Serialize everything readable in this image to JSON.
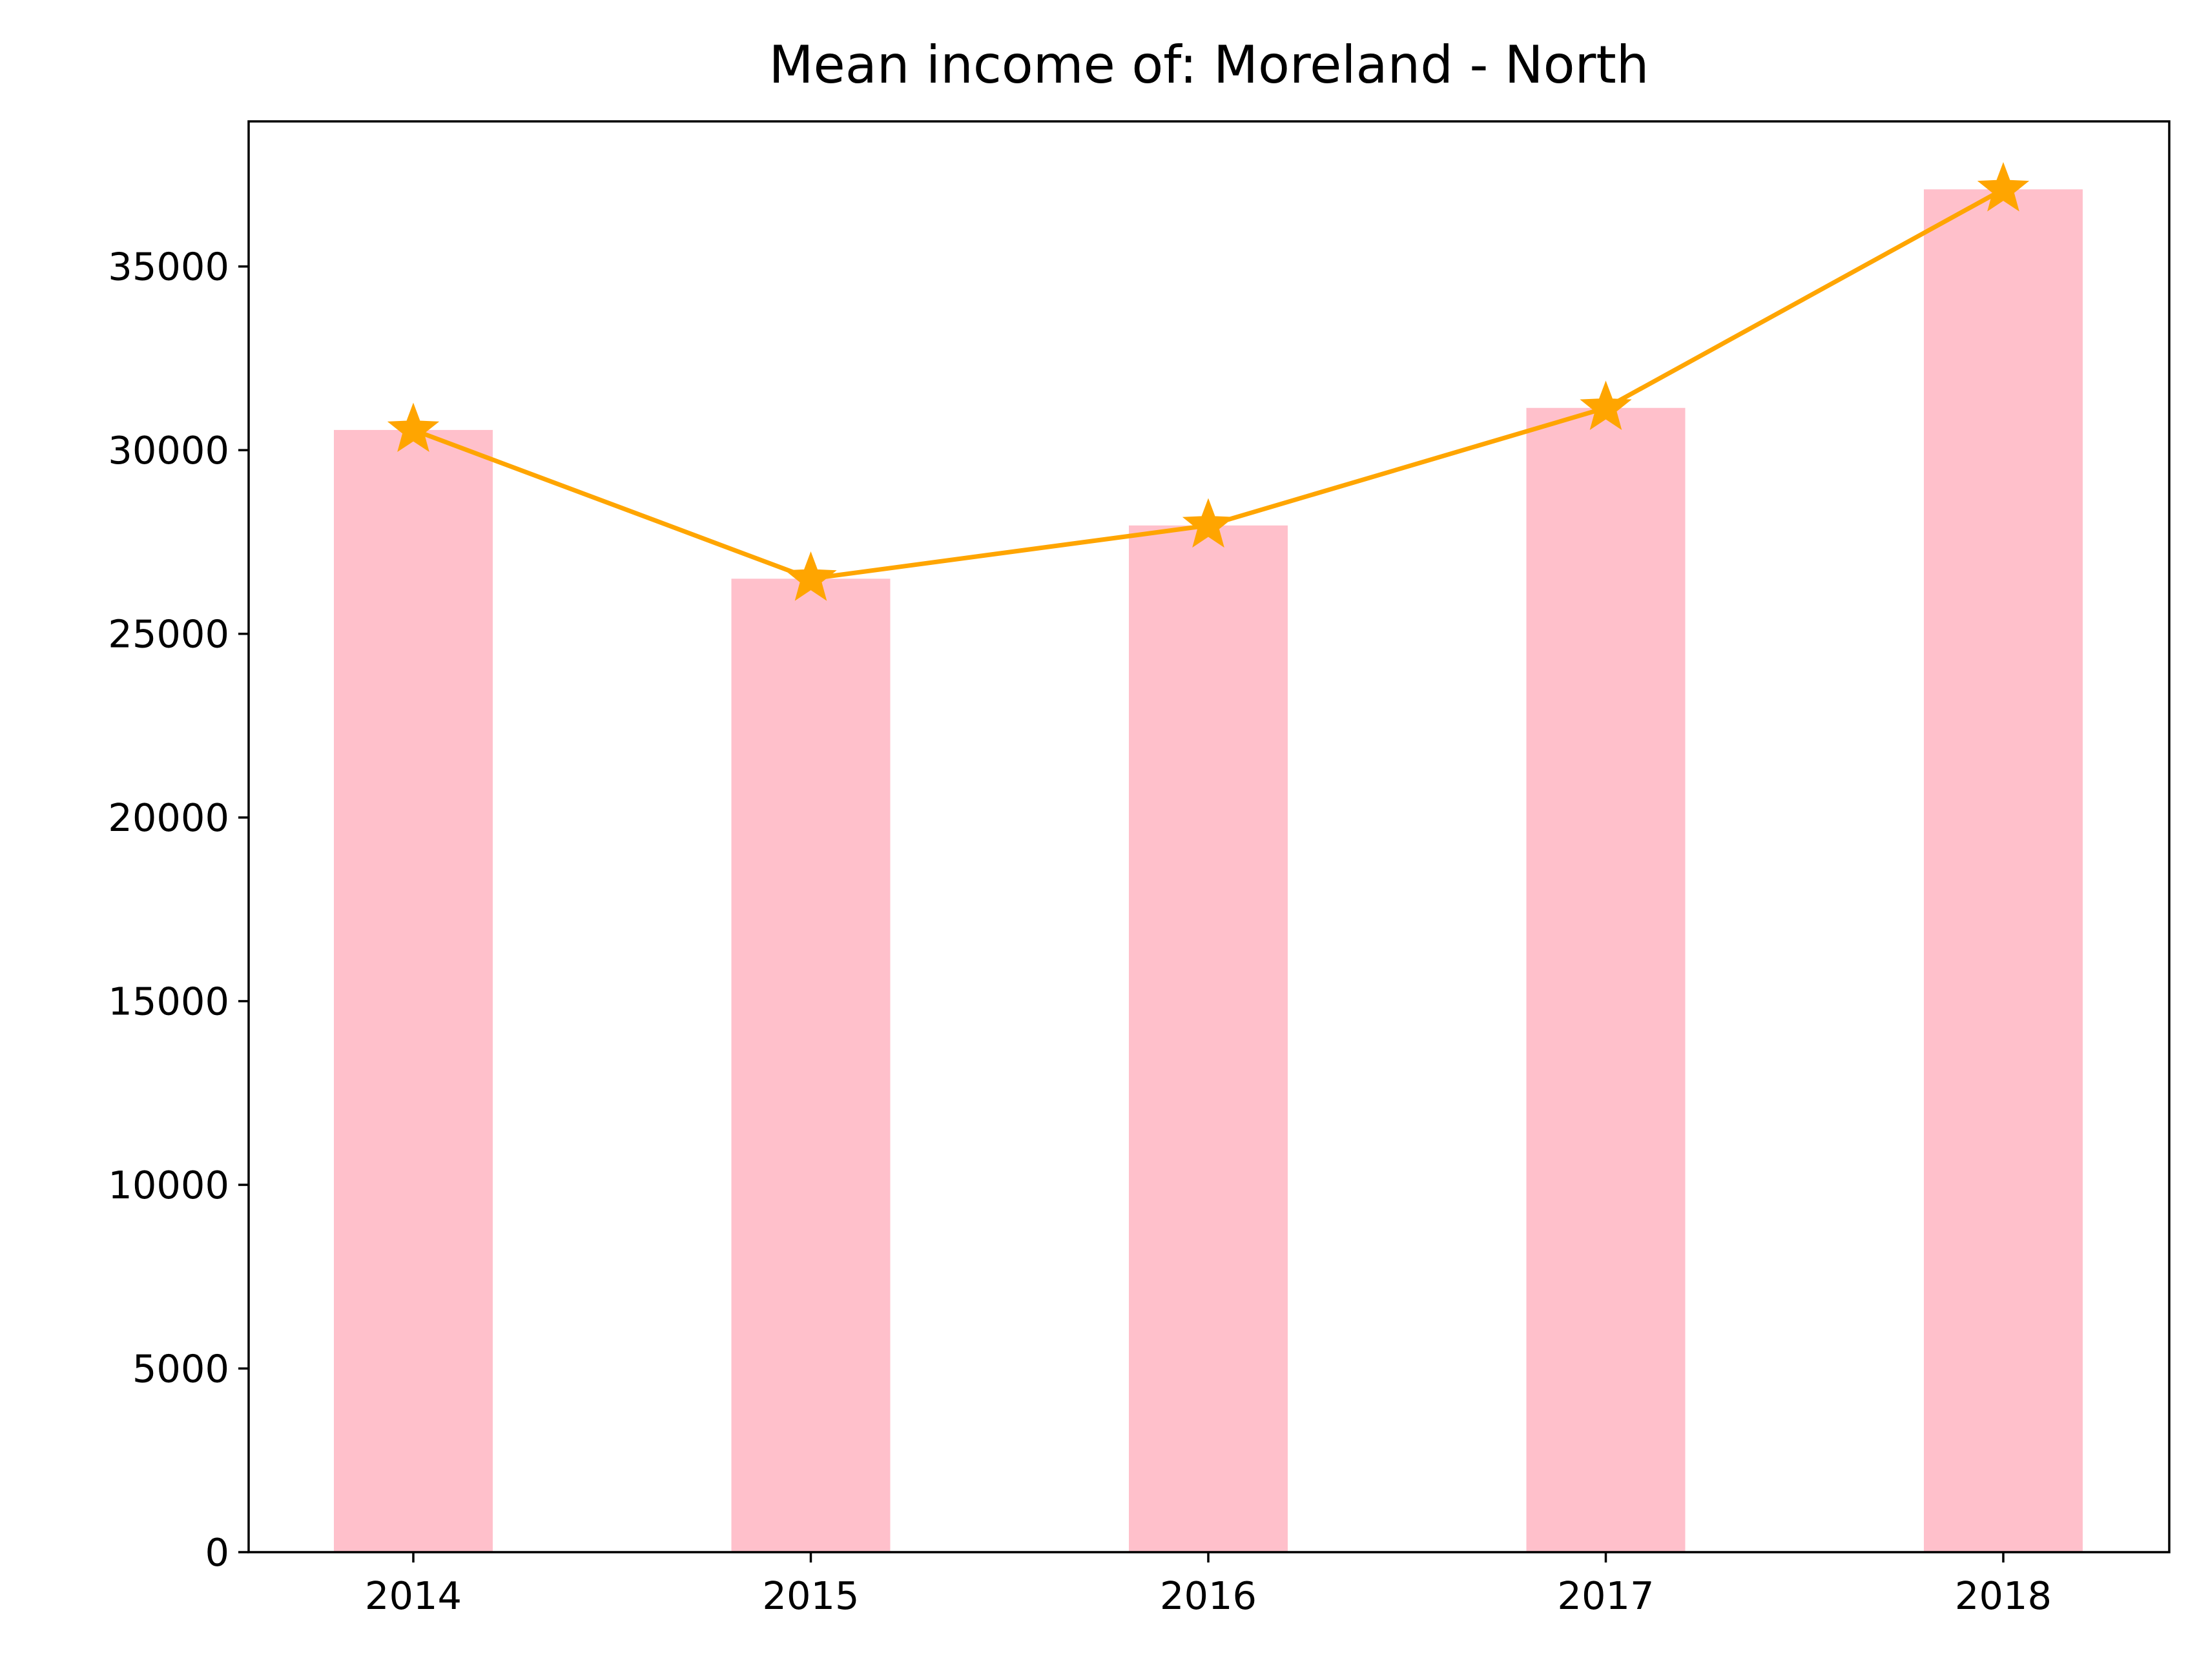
{
  "chart_data": {
    "type": "bar",
    "title": "Mean income of: Moreland - North",
    "xlabel": "",
    "ylabel": "",
    "categories": [
      "2014",
      "2015",
      "2016",
      "2017",
      "2018"
    ],
    "values": [
      30550,
      26500,
      27950,
      31150,
      37100
    ],
    "line_overlay": {
      "values": [
        30550,
        26500,
        27950,
        31150,
        37100
      ],
      "marker": "star"
    },
    "ylim": [
      0,
      38950
    ],
    "yticks": [
      0,
      5000,
      10000,
      15000,
      20000,
      25000,
      30000,
      35000
    ],
    "ytick_labels": [
      "0",
      "5000",
      "10000",
      "15000",
      "20000",
      "25000",
      "30000",
      "35000"
    ],
    "grid": false,
    "colors": {
      "bar": "#ffc0cb",
      "line": "#ffa500",
      "axis": "#000000"
    }
  }
}
